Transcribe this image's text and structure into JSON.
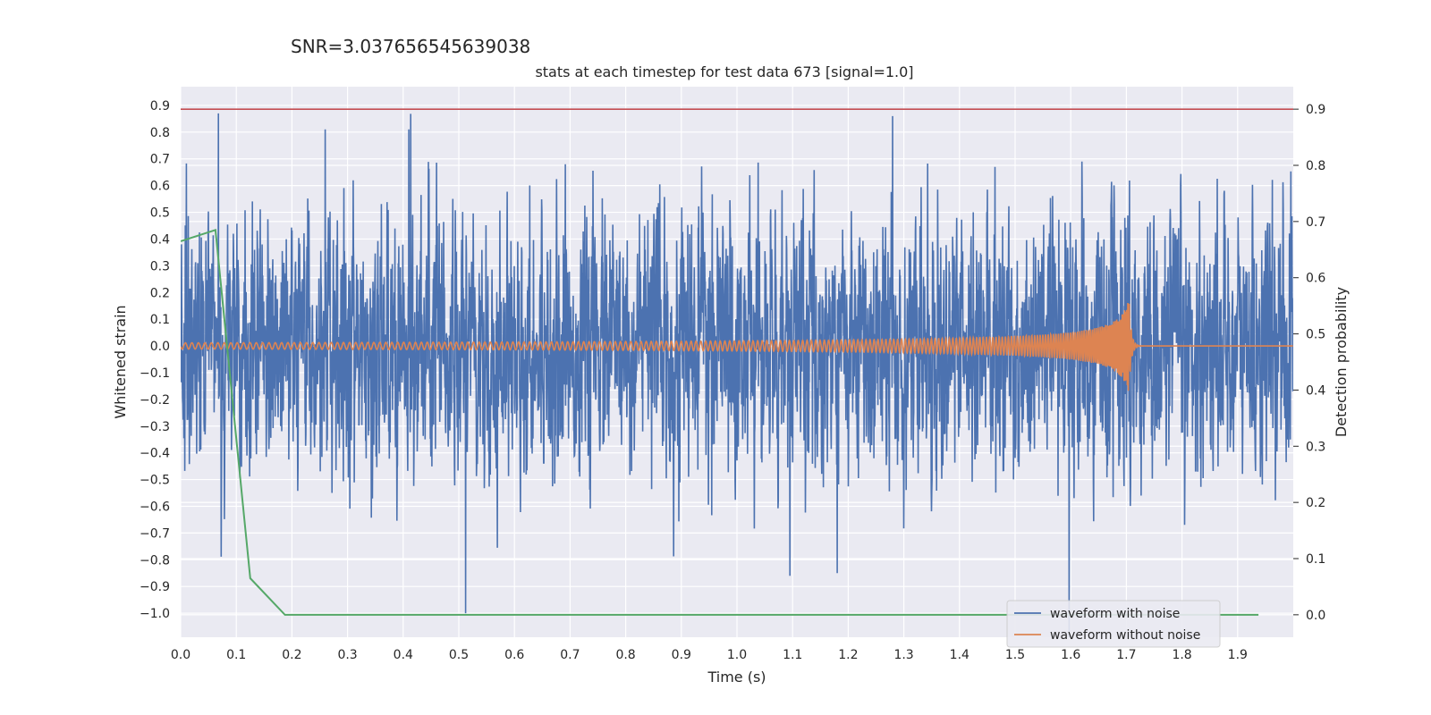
{
  "header": {
    "snr_text": "SNR=3.037656545639038"
  },
  "chart_data": {
    "type": "line",
    "title": "stats at each timestep for test data 673 [signal=1.0]",
    "xlabel": "Time (s)",
    "ylabel_left": "Whitened strain",
    "ylabel_right": "Detection probability",
    "xlim": [
      0.0,
      2.0
    ],
    "ylim_left": [
      -1.09,
      0.97
    ],
    "ylim_right": [
      -0.04,
      0.94
    ],
    "x_ticks": [
      "0.0",
      "0.1",
      "0.2",
      "0.3",
      "0.4",
      "0.5",
      "0.6",
      "0.7",
      "0.8",
      "0.9",
      "1.0",
      "1.1",
      "1.2",
      "1.3",
      "1.4",
      "1.5",
      "1.6",
      "1.7",
      "1.8",
      "1.9"
    ],
    "y_left_ticks": [
      "0.9",
      "0.8",
      "0.7",
      "0.6",
      "0.5",
      "0.4",
      "0.3",
      "0.2",
      "0.1",
      "0.0",
      "−0.1",
      "−0.2",
      "−0.3",
      "−0.4",
      "−0.5",
      "−0.6",
      "−0.7",
      "−0.8",
      "−0.9",
      "−1.0"
    ],
    "y_right_ticks": [
      "0.9",
      "0.8",
      "0.7",
      "0.6",
      "0.5",
      "0.4",
      "0.3",
      "0.2",
      "0.1",
      "0.0"
    ],
    "grid": true,
    "legend_position": "bottom-right",
    "series": [
      {
        "name": "waveform with noise",
        "axis": "left",
        "color": "#4c72b0",
        "description_values": "dense noise roughly between -0.5 and 0.5 with spikes up to 0.87 and down to -1.0",
        "noise_std": 0.23,
        "peak_samples": [
          [
            0.068,
            0.87
          ],
          [
            0.512,
            -1.0
          ],
          [
            1.28,
            0.86
          ],
          [
            1.095,
            -0.86
          ],
          [
            1.18,
            -0.85
          ],
          [
            0.41,
            0.81
          ],
          [
            0.26,
            0.81
          ]
        ]
      },
      {
        "name": "waveform without noise",
        "axis": "left",
        "color": "#dd8452",
        "description_values": "chirp signal with small amplitude ~0.01 rising to ~0.17 near t=1.70 s then zero",
        "merger_time": 1.705,
        "max_amplitude": 0.18
      },
      {
        "axis": "right",
        "color": "#55a868",
        "x": [
          0.0,
          0.0625,
          0.125,
          0.1875,
          0.25,
          0.5,
          1.0,
          1.5,
          1.9375
        ],
        "y": [
          0.665,
          0.685,
          0.065,
          0.0,
          0.0,
          0.0,
          0.0,
          0.0,
          0.0
        ]
      },
      {
        "axis": "right",
        "color": "#c44e52",
        "type": "hline",
        "y": 0.9
      }
    ]
  }
}
